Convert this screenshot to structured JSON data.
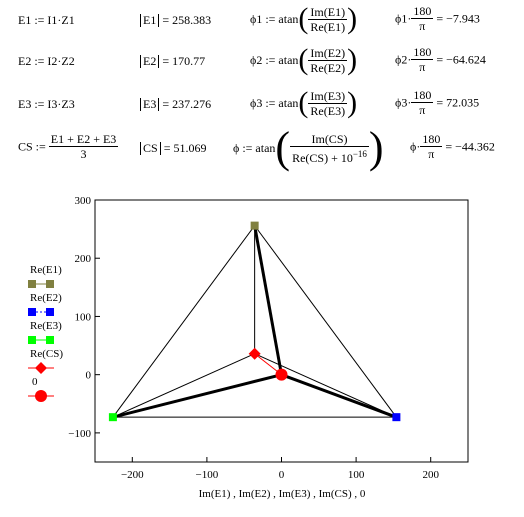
{
  "equations": {
    "row1": {
      "def": "E1 := I1·Z1",
      "absl": "E1",
      "absv": "= 258.383",
      "phi": "ϕ1 := atan",
      "num": "Im(E1)",
      "den": "Re(E1)",
      "deg": "ϕ1·",
      "k": "180",
      "pi": "π",
      "degv": "= −7.943"
    },
    "row2": {
      "def": "E2 := I2·Z2",
      "absl": "E2",
      "absv": "= 170.77",
      "phi": "ϕ2 := atan",
      "num": "Im(E2)",
      "den": "Re(E2)",
      "deg": "ϕ2·",
      "k": "180",
      "pi": "π",
      "degv": "= −64.624"
    },
    "row3": {
      "def": "E3 := I3·Z3",
      "absl": "E3",
      "absv": "= 237.276",
      "phi": "ϕ3 := atan",
      "num": "Im(E3)",
      "den": "Re(E3)",
      "deg": "ϕ3·",
      "k": "180",
      "pi": "π",
      "degv": "= 72.035"
    },
    "row4": {
      "lhs": "CS :=",
      "num": "E1 + E2 + E3",
      "den": "3",
      "absl": "CS",
      "absv": "= 51.069",
      "phi": "ϕ := atan",
      "inum": "Im(CS)",
      "iden": "Re(CS) + 10",
      "exp": "−16",
      "deg": "ϕ·",
      "k": "180",
      "pi": "π",
      "degv": "= −44.362"
    }
  },
  "legend": [
    {
      "label": "Re(E1)",
      "color": "#808040",
      "shape": "square"
    },
    {
      "label": "Re(E2)",
      "color": "#0000ff",
      "shape": "square"
    },
    {
      "label": "Re(E3)",
      "color": "#00ff00",
      "shape": "square"
    },
    {
      "label": "Re(CS)",
      "color": "#ff0000",
      "shape": "diamond"
    },
    {
      "label": "0",
      "color": "#ff0000",
      "shape": "circle"
    }
  ],
  "chart_data": {
    "type": "scatter",
    "xlabel": "Im(E1) , Im(E2) , Im(E3) , Im(CS) , 0",
    "xlim": [
      -250,
      250
    ],
    "ylim": [
      -150,
      300
    ],
    "xticks": [
      -200,
      -100,
      0,
      100,
      200
    ],
    "yticks": [
      -100,
      0,
      100,
      200,
      300
    ],
    "grid": false,
    "legend_position": "left",
    "points": {
      "E1": [
        -36,
        256
      ],
      "E2": [
        154,
        -73
      ],
      "E3": [
        -226,
        -73
      ],
      "CS": [
        -36,
        36
      ],
      "O": [
        0,
        0
      ]
    }
  }
}
